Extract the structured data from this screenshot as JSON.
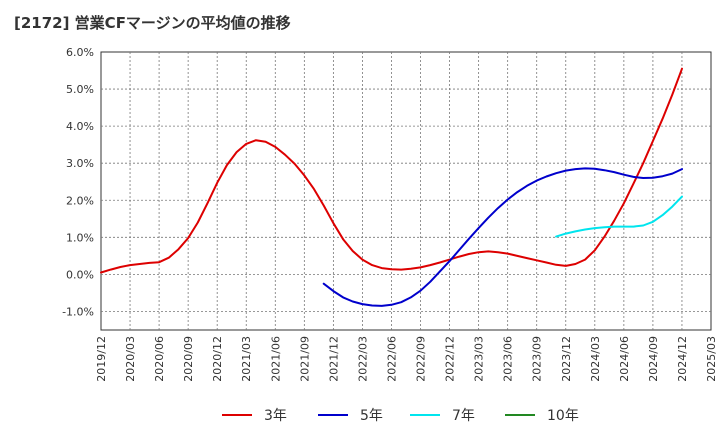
{
  "chart_data": {
    "type": "line",
    "title": "[2172]  営業CFマージンの平均値の推移",
    "xlabel": "",
    "ylabel": "",
    "x_ticks": [
      "2019/12",
      "2020/03",
      "2020/06",
      "2020/09",
      "2020/12",
      "2021/03",
      "2021/06",
      "2021/09",
      "2021/12",
      "2022/03",
      "2022/06",
      "2022/09",
      "2022/12",
      "2023/03",
      "2023/06",
      "2023/09",
      "2023/12",
      "2024/03",
      "2024/06",
      "2024/09",
      "2024/12",
      "2025/03"
    ],
    "y_ticks": [
      "6.0%",
      "5.0%",
      "4.0%",
      "3.0%",
      "2.0%",
      "1.0%",
      "0.0%",
      "-1.0%"
    ],
    "ylim": [
      -1.5,
      6.0
    ],
    "grid": true,
    "legend_position": "bottom",
    "series": [
      {
        "name": "3年",
        "color": "#dd0000",
        "x": [
          "2019/12",
          "2020/01",
          "2020/02",
          "2020/03",
          "2020/04",
          "2020/05",
          "2020/06",
          "2020/07",
          "2020/08",
          "2020/09",
          "2020/10",
          "2020/11",
          "2020/12",
          "2021/01",
          "2021/02",
          "2021/03",
          "2021/04",
          "2021/05",
          "2021/06",
          "2021/07",
          "2021/08",
          "2021/09",
          "2021/10",
          "2021/11",
          "2021/12",
          "2022/01",
          "2022/02",
          "2022/03",
          "2022/04",
          "2022/05",
          "2022/06",
          "2022/07",
          "2022/08",
          "2022/09",
          "2022/10",
          "2022/11",
          "2022/12",
          "2023/01",
          "2023/02",
          "2023/03",
          "2023/04",
          "2023/05",
          "2023/06",
          "2023/07",
          "2023/08",
          "2023/09",
          "2023/10",
          "2023/11",
          "2023/12",
          "2024/01",
          "2024/02",
          "2024/03",
          "2024/04",
          "2024/05",
          "2024/06",
          "2024/07",
          "2024/08",
          "2024/09",
          "2024/10",
          "2024/11",
          "2024/12"
        ],
        "values": [
          0.05,
          0.13,
          0.2,
          0.25,
          0.28,
          0.31,
          0.33,
          0.45,
          0.68,
          0.98,
          1.4,
          1.92,
          2.47,
          2.95,
          3.3,
          3.52,
          3.62,
          3.58,
          3.44,
          3.23,
          2.98,
          2.67,
          2.3,
          1.86,
          1.38,
          0.95,
          0.63,
          0.4,
          0.25,
          0.17,
          0.14,
          0.13,
          0.15,
          0.19,
          0.25,
          0.32,
          0.4,
          0.48,
          0.55,
          0.6,
          0.62,
          0.6,
          0.56,
          0.5,
          0.44,
          0.38,
          0.32,
          0.26,
          0.23,
          0.28,
          0.4,
          0.65,
          1.02,
          1.45,
          1.92,
          2.45,
          3.0,
          3.6,
          4.2,
          4.85,
          5.55
        ]
      },
      {
        "name": "5年",
        "color": "#0000cc",
        "x": [
          "2021/11",
          "2021/12",
          "2022/01",
          "2022/02",
          "2022/03",
          "2022/04",
          "2022/05",
          "2022/06",
          "2022/07",
          "2022/08",
          "2022/09",
          "2022/10",
          "2022/11",
          "2022/12",
          "2023/01",
          "2023/02",
          "2023/03",
          "2023/04",
          "2023/05",
          "2023/06",
          "2023/07",
          "2023/08",
          "2023/09",
          "2023/10",
          "2023/11",
          "2023/12",
          "2024/01",
          "2024/02",
          "2024/03",
          "2024/04",
          "2024/05",
          "2024/06",
          "2024/07",
          "2024/08",
          "2024/09",
          "2024/10",
          "2024/11",
          "2024/12"
        ],
        "values": [
          -0.25,
          -0.45,
          -0.62,
          -0.73,
          -0.8,
          -0.84,
          -0.85,
          -0.82,
          -0.75,
          -0.62,
          -0.44,
          -0.2,
          0.08,
          0.36,
          0.66,
          0.96,
          1.25,
          1.53,
          1.79,
          2.02,
          2.22,
          2.39,
          2.53,
          2.64,
          2.73,
          2.8,
          2.84,
          2.86,
          2.85,
          2.81,
          2.76,
          2.69,
          2.63,
          2.6,
          2.61,
          2.65,
          2.72,
          2.84
        ]
      },
      {
        "name": "7年",
        "color": "#00e5ee",
        "x": [
          "2023/11",
          "2023/12",
          "2024/01",
          "2024/02",
          "2024/03",
          "2024/04",
          "2024/05",
          "2024/06",
          "2024/07",
          "2024/08",
          "2024/09",
          "2024/10",
          "2024/11",
          "2024/12"
        ],
        "values": [
          1.02,
          1.1,
          1.16,
          1.21,
          1.25,
          1.27,
          1.29,
          1.29,
          1.29,
          1.32,
          1.42,
          1.6,
          1.83,
          2.1
        ]
      },
      {
        "name": "10年",
        "color": "#228822",
        "x": [],
        "values": []
      }
    ]
  }
}
